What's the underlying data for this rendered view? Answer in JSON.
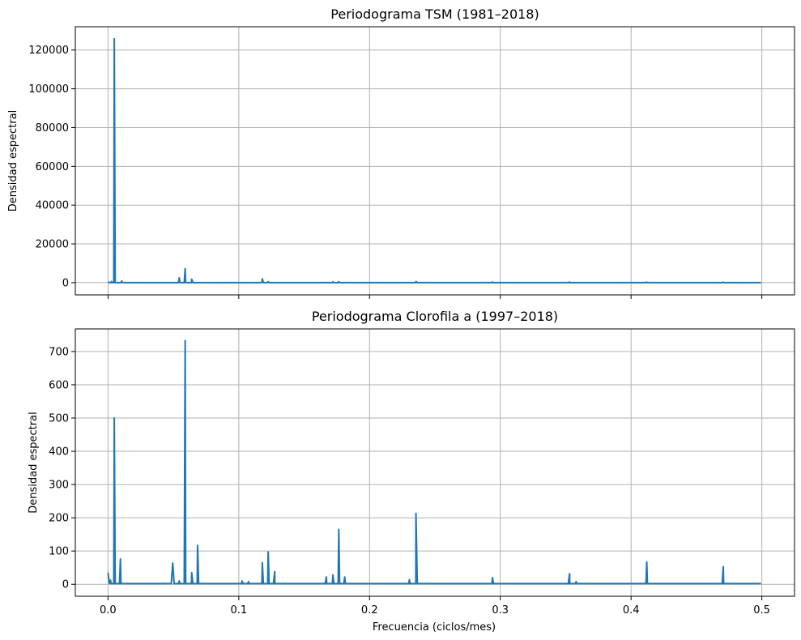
{
  "figure": {
    "background": "#ffffff",
    "line_color": "#1f77b4",
    "shared_x_label": "Frecuencia (ciclos/mes)",
    "x_tick_labels": [
      "0.0",
      "0.1",
      "0.2",
      "0.3",
      "0.4",
      "0.5"
    ]
  },
  "chart_data": [
    {
      "type": "line",
      "title": "Periodograma TSM (1981–2018)",
      "xlabel": "",
      "ylabel": "Densidad espectral",
      "xlim": [
        -0.025,
        0.525
      ],
      "ylim": [
        -6300,
        132000
      ],
      "grid": true,
      "x_ticks": [
        0.0,
        0.1,
        0.2,
        0.3,
        0.4,
        0.5
      ],
      "x_tick_labels_visible": false,
      "y_ticks": [
        0,
        20000,
        40000,
        60000,
        80000,
        100000,
        120000
      ],
      "y_tick_labels": [
        "0",
        "20000",
        "40000",
        "60000",
        "80000",
        "100000",
        "120000"
      ],
      "baseline": 0,
      "peaks": [
        {
          "x": 0.0,
          "y": 400
        },
        {
          "x": 0.0026,
          "y": 600
        },
        {
          "x": 0.0048,
          "y": 125800
        },
        {
          "x": 0.0105,
          "y": 900
        },
        {
          "x": 0.0545,
          "y": 2500
        },
        {
          "x": 0.059,
          "y": 7200
        },
        {
          "x": 0.064,
          "y": 1800
        },
        {
          "x": 0.118,
          "y": 2000
        },
        {
          "x": 0.1225,
          "y": 500
        },
        {
          "x": 0.172,
          "y": 400
        },
        {
          "x": 0.1765,
          "y": 500
        },
        {
          "x": 0.2355,
          "y": 600
        },
        {
          "x": 0.294,
          "y": 300
        },
        {
          "x": 0.353,
          "y": 300
        },
        {
          "x": 0.412,
          "y": 300
        },
        {
          "x": 0.4705,
          "y": 250
        }
      ]
    },
    {
      "type": "line",
      "title": "Periodograma Clorofila a (1997–2018)",
      "xlabel": "Frecuencia (ciclos/mes)",
      "ylabel": "Densidad espectral",
      "xlim": [
        -0.025,
        0.525
      ],
      "ylim": [
        -36,
        768
      ],
      "grid": true,
      "x_ticks": [
        0.0,
        0.1,
        0.2,
        0.3,
        0.4,
        0.5
      ],
      "x_tick_labels_visible": true,
      "y_ticks": [
        0,
        100,
        200,
        300,
        400,
        500,
        600,
        700
      ],
      "y_tick_labels": [
        "0",
        "100",
        "200",
        "300",
        "400",
        "500",
        "600",
        "700"
      ],
      "baseline": 2,
      "peaks": [
        {
          "x": 0.0,
          "y": 35
        },
        {
          "x": 0.002,
          "y": 12
        },
        {
          "x": 0.0048,
          "y": 500
        },
        {
          "x": 0.0095,
          "y": 76
        },
        {
          "x": 0.0495,
          "y": 64
        },
        {
          "x": 0.0545,
          "y": 10
        },
        {
          "x": 0.059,
          "y": 733
        },
        {
          "x": 0.064,
          "y": 35
        },
        {
          "x": 0.0685,
          "y": 117
        },
        {
          "x": 0.1025,
          "y": 10
        },
        {
          "x": 0.1075,
          "y": 8
        },
        {
          "x": 0.118,
          "y": 65
        },
        {
          "x": 0.1225,
          "y": 97
        },
        {
          "x": 0.1275,
          "y": 38
        },
        {
          "x": 0.167,
          "y": 22
        },
        {
          "x": 0.172,
          "y": 28
        },
        {
          "x": 0.1765,
          "y": 165
        },
        {
          "x": 0.181,
          "y": 22
        },
        {
          "x": 0.2305,
          "y": 14
        },
        {
          "x": 0.2355,
          "y": 213
        },
        {
          "x": 0.294,
          "y": 20
        },
        {
          "x": 0.353,
          "y": 32
        },
        {
          "x": 0.358,
          "y": 8
        },
        {
          "x": 0.412,
          "y": 67
        },
        {
          "x": 0.4705,
          "y": 53
        }
      ]
    }
  ]
}
